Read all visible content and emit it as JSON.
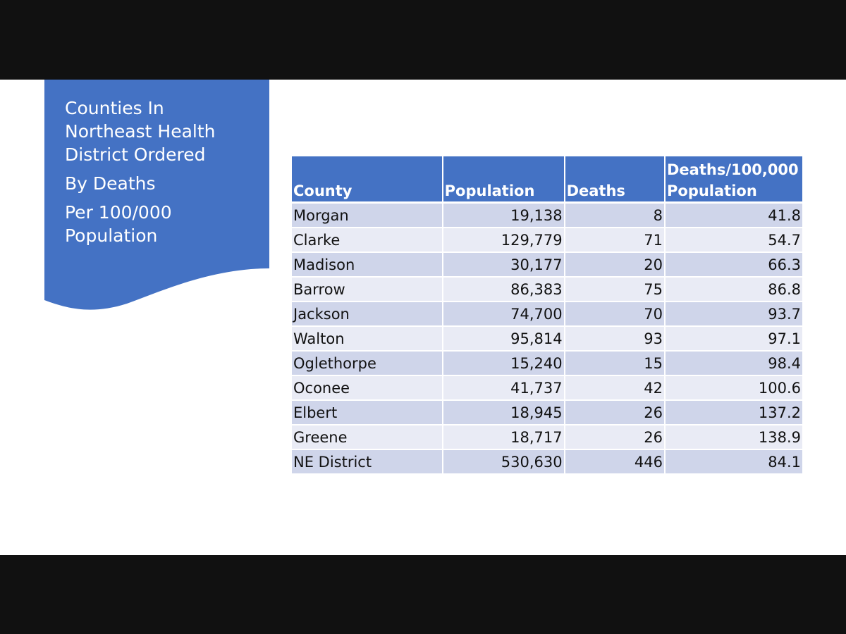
{
  "title": {
    "lines": [
      "Counties In",
      "Northeast Health",
      "District Ordered"
    ],
    "line4": "By Deaths",
    "lines2": [
      "Per 100/000",
      "Population"
    ]
  },
  "table": {
    "headers": {
      "county": "County",
      "population": "Population",
      "deaths": "Deaths",
      "rate_line1": "Deaths/100,000",
      "rate_line2": "Population"
    },
    "rows": [
      {
        "county": "Morgan",
        "population": "19,138",
        "deaths": "8",
        "rate": "41.8"
      },
      {
        "county": "Clarke",
        "population": "129,779",
        "deaths": "71",
        "rate": "54.7"
      },
      {
        "county": "Madison",
        "population": "30,177",
        "deaths": "20",
        "rate": "66.3"
      },
      {
        "county": "Barrow",
        "population": "86,383",
        "deaths": "75",
        "rate": "86.8"
      },
      {
        "county": "Jackson",
        "population": "74,700",
        "deaths": "70",
        "rate": "93.7"
      },
      {
        "county": "Walton",
        "population": "95,814",
        "deaths": "93",
        "rate": "97.1"
      },
      {
        "county": "Oglethorpe",
        "population": "15,240",
        "deaths": "15",
        "rate": "98.4"
      },
      {
        "county": "Oconee",
        "population": "41,737",
        "deaths": "42",
        "rate": "100.6"
      },
      {
        "county": "Elbert",
        "population": "18,945",
        "deaths": "26",
        "rate": "137.2"
      },
      {
        "county": "Greene",
        "population": "18,717",
        "deaths": "26",
        "rate": "138.9"
      },
      {
        "county": "NE District",
        "population": "530,630",
        "deaths": "446",
        "rate": "84.1"
      }
    ]
  },
  "colors": {
    "accent": "#4472c4",
    "row_dark": "#cfd5ea",
    "row_light": "#e9ebf5",
    "letterbox": "#111111"
  }
}
